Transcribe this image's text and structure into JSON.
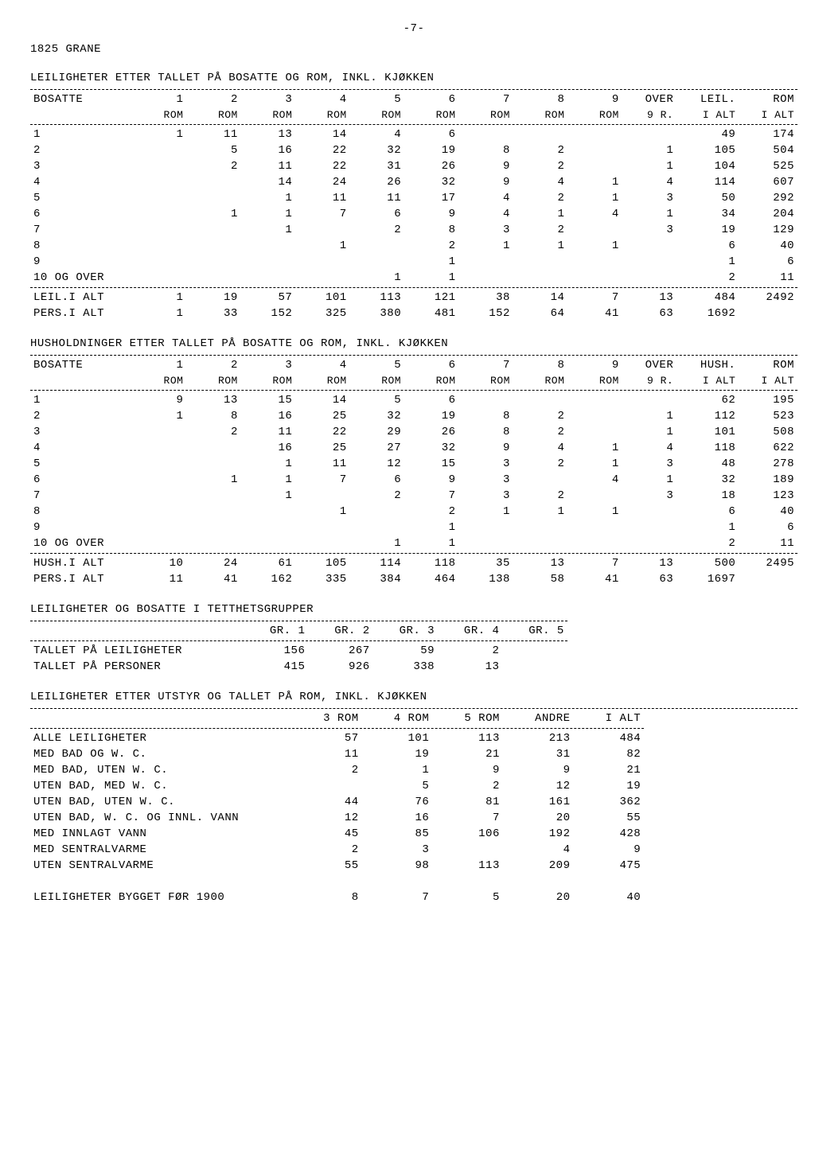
{
  "page_number": "-7-",
  "region": "1825 GRANE",
  "table1": {
    "title": "LEILIGHETER ETTER TALLET PÅ BOSATTE OG ROM, INKL. KJØKKEN",
    "col_label": "BOSATTE",
    "headers_top": [
      "1",
      "2",
      "3",
      "4",
      "5",
      "6",
      "7",
      "8",
      "9",
      "OVER",
      "LEIL.",
      "ROM"
    ],
    "headers_bot": [
      "ROM",
      "ROM",
      "ROM",
      "ROM",
      "ROM",
      "ROM",
      "ROM",
      "ROM",
      "ROM",
      "9 R.",
      "I ALT",
      "I ALT"
    ],
    "rows": [
      {
        "label": "1",
        "cells": [
          "1",
          "11",
          "13",
          "14",
          "4",
          "6",
          "",
          "",
          "",
          "",
          "49",
          "174"
        ]
      },
      {
        "label": "2",
        "cells": [
          "",
          "5",
          "16",
          "22",
          "32",
          "19",
          "8",
          "2",
          "",
          "1",
          "105",
          "504"
        ]
      },
      {
        "label": "3",
        "cells": [
          "",
          "2",
          "11",
          "22",
          "31",
          "26",
          "9",
          "2",
          "",
          "1",
          "104",
          "525"
        ]
      },
      {
        "label": "4",
        "cells": [
          "",
          "",
          "14",
          "24",
          "26",
          "32",
          "9",
          "4",
          "1",
          "4",
          "114",
          "607"
        ]
      },
      {
        "label": "5",
        "cells": [
          "",
          "",
          "1",
          "11",
          "11",
          "17",
          "4",
          "2",
          "1",
          "3",
          "50",
          "292"
        ]
      },
      {
        "label": "6",
        "cells": [
          "",
          "1",
          "1",
          "7",
          "6",
          "9",
          "4",
          "1",
          "4",
          "1",
          "34",
          "204"
        ]
      },
      {
        "label": "7",
        "cells": [
          "",
          "",
          "1",
          "",
          "2",
          "8",
          "3",
          "2",
          "",
          "3",
          "19",
          "129"
        ]
      },
      {
        "label": "8",
        "cells": [
          "",
          "",
          "",
          "1",
          "",
          "2",
          "1",
          "1",
          "1",
          "",
          "6",
          "40"
        ]
      },
      {
        "label": "9",
        "cells": [
          "",
          "",
          "",
          "",
          "",
          "1",
          "",
          "",
          "",
          "",
          "1",
          "6"
        ]
      },
      {
        "label": "10 OG OVER",
        "cells": [
          "",
          "",
          "",
          "",
          "1",
          "1",
          "",
          "",
          "",
          "",
          "2",
          "11"
        ]
      }
    ],
    "totals": [
      {
        "label": "LEIL.I ALT",
        "cells": [
          "1",
          "19",
          "57",
          "101",
          "113",
          "121",
          "38",
          "14",
          "7",
          "13",
          "484",
          "2492"
        ]
      },
      {
        "label": "PERS.I ALT",
        "cells": [
          "1",
          "33",
          "152",
          "325",
          "380",
          "481",
          "152",
          "64",
          "41",
          "63",
          "1692",
          ""
        ]
      }
    ]
  },
  "table2": {
    "title": "HUSHOLDNINGER ETTER TALLET PÅ BOSATTE OG ROM, INKL. KJØKKEN",
    "col_label": "BOSATTE",
    "headers_top": [
      "1",
      "2",
      "3",
      "4",
      "5",
      "6",
      "7",
      "8",
      "9",
      "OVER",
      "HUSH.",
      "ROM"
    ],
    "headers_bot": [
      "ROM",
      "ROM",
      "ROM",
      "ROM",
      "ROM",
      "ROM",
      "ROM",
      "ROM",
      "ROM",
      "9 R.",
      "I ALT",
      "I ALT"
    ],
    "rows": [
      {
        "label": "1",
        "cells": [
          "9",
          "13",
          "15",
          "14",
          "5",
          "6",
          "",
          "",
          "",
          "",
          "62",
          "195"
        ]
      },
      {
        "label": "2",
        "cells": [
          "1",
          "8",
          "16",
          "25",
          "32",
          "19",
          "8",
          "2",
          "",
          "1",
          "112",
          "523"
        ]
      },
      {
        "label": "3",
        "cells": [
          "",
          "2",
          "11",
          "22",
          "29",
          "26",
          "8",
          "2",
          "",
          "1",
          "101",
          "508"
        ]
      },
      {
        "label": "4",
        "cells": [
          "",
          "",
          "16",
          "25",
          "27",
          "32",
          "9",
          "4",
          "1",
          "4",
          "118",
          "622"
        ]
      },
      {
        "label": "5",
        "cells": [
          "",
          "",
          "1",
          "11",
          "12",
          "15",
          "3",
          "2",
          "1",
          "3",
          "48",
          "278"
        ]
      },
      {
        "label": "6",
        "cells": [
          "",
          "1",
          "1",
          "7",
          "6",
          "9",
          "3",
          "",
          "4",
          "1",
          "32",
          "189"
        ]
      },
      {
        "label": "7",
        "cells": [
          "",
          "",
          "1",
          "",
          "2",
          "7",
          "3",
          "2",
          "",
          "3",
          "18",
          "123"
        ]
      },
      {
        "label": "8",
        "cells": [
          "",
          "",
          "",
          "1",
          "",
          "2",
          "1",
          "1",
          "1",
          "",
          "6",
          "40"
        ]
      },
      {
        "label": "9",
        "cells": [
          "",
          "",
          "",
          "",
          "",
          "1",
          "",
          "",
          "",
          "",
          "1",
          "6"
        ]
      },
      {
        "label": "10 OG OVER",
        "cells": [
          "",
          "",
          "",
          "",
          "1",
          "1",
          "",
          "",
          "",
          "",
          "2",
          "11"
        ]
      }
    ],
    "totals": [
      {
        "label": "HUSH.I ALT",
        "cells": [
          "10",
          "24",
          "61",
          "105",
          "114",
          "118",
          "35",
          "13",
          "7",
          "13",
          "500",
          "2495"
        ]
      },
      {
        "label": "PERS.I ALT",
        "cells": [
          "11",
          "41",
          "162",
          "335",
          "384",
          "464",
          "138",
          "58",
          "41",
          "63",
          "1697",
          ""
        ]
      }
    ]
  },
  "table3": {
    "title": "LEILIGHETER OG BOSATTE I TETTHETSGRUPPER",
    "headers": [
      "GR. 1",
      "GR. 2",
      "GR. 3",
      "GR. 4",
      "GR. 5"
    ],
    "rows": [
      {
        "label": "TALLET PÅ LEILIGHETER",
        "cells": [
          "156",
          "267",
          "59",
          "2",
          ""
        ]
      },
      {
        "label": "TALLET PÅ PERSONER",
        "cells": [
          "415",
          "926",
          "338",
          "13",
          ""
        ]
      }
    ]
  },
  "table4": {
    "title": "LEILIGHETER ETTER UTSTYR OG TALLET PÅ ROM, INKL. KJØKKEN",
    "headers": [
      "3 ROM",
      "4 ROM",
      "5 ROM",
      "ANDRE",
      "I ALT"
    ],
    "rows": [
      {
        "label": "ALLE LEILIGHETER",
        "cells": [
          "57",
          "101",
          "113",
          "213",
          "484"
        ]
      },
      {
        "label": "MED BAD OG W. C.",
        "cells": [
          "11",
          "19",
          "21",
          "31",
          "82"
        ]
      },
      {
        "label": "MED BAD, UTEN W. C.",
        "cells": [
          "2",
          "1",
          "9",
          "9",
          "21"
        ]
      },
      {
        "label": "UTEN BAD, MED W. C.",
        "cells": [
          "",
          "5",
          "2",
          "12",
          "19"
        ]
      },
      {
        "label": "UTEN BAD, UTEN W. C.",
        "cells": [
          "44",
          "76",
          "81",
          "161",
          "362"
        ]
      },
      {
        "label": "UTEN BAD, W. C. OG INNL. VANN",
        "cells": [
          "12",
          "16",
          "7",
          "20",
          "55"
        ]
      },
      {
        "label": "MED INNLAGT VANN",
        "cells": [
          "45",
          "85",
          "106",
          "192",
          "428"
        ]
      },
      {
        "label": "MED SENTRALVARME",
        "cells": [
          "2",
          "3",
          "",
          "4",
          "9"
        ]
      },
      {
        "label": "UTEN SENTRALVARME",
        "cells": [
          "55",
          "98",
          "113",
          "209",
          "475"
        ]
      }
    ],
    "footer": {
      "label": "LEILIGHETER BYGGET FØR 1900",
      "cells": [
        "8",
        "7",
        "5",
        "20",
        "40"
      ]
    }
  }
}
